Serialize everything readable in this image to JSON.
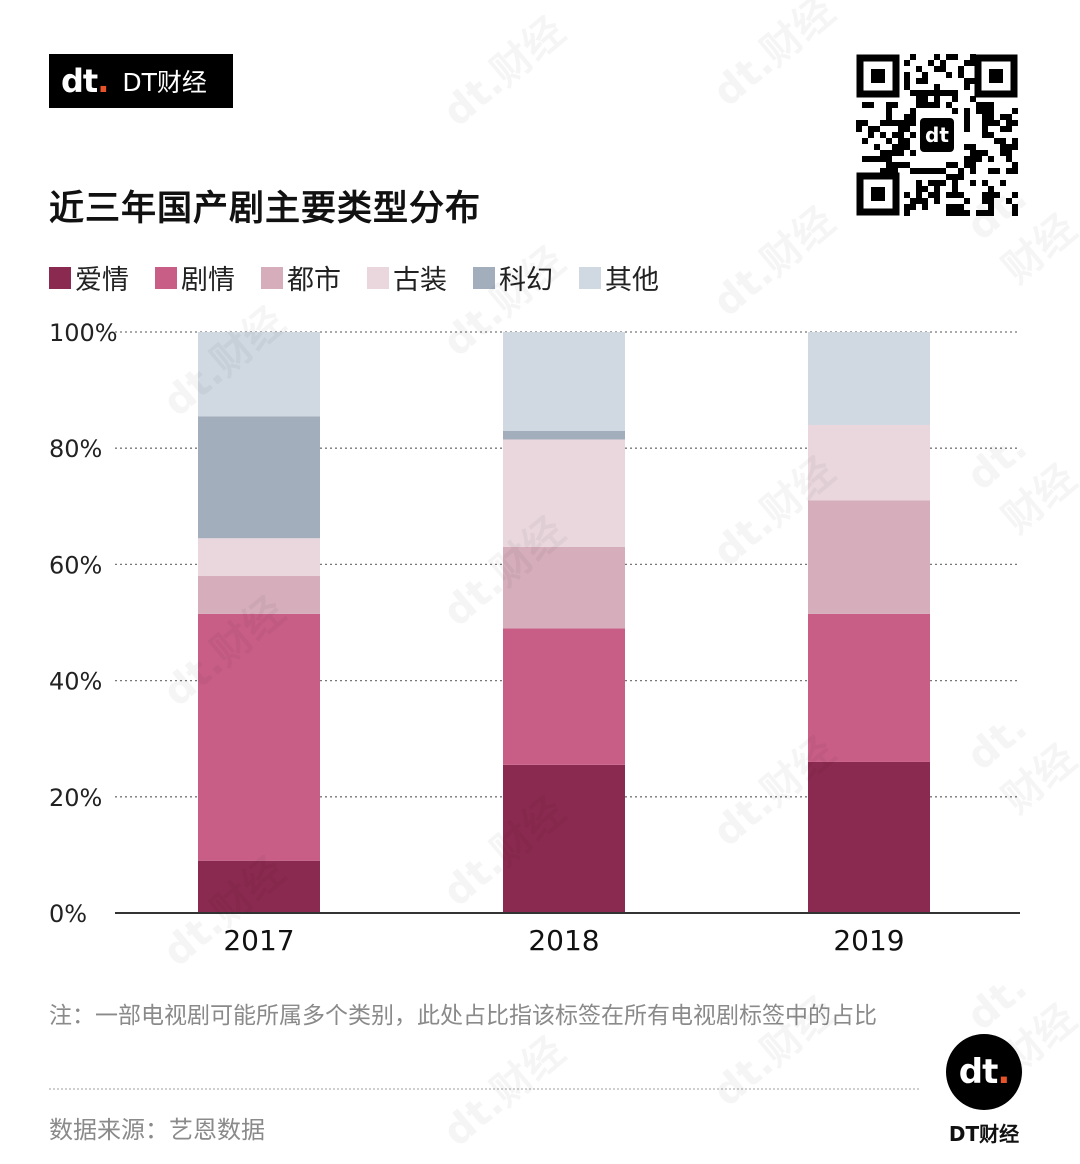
{
  "brand": {
    "mark": "dt",
    "name": "DT财经"
  },
  "title": "近三年国产剧主要类型分布",
  "note": "注：一部电视剧可能所属多个类别，此处占比指该标签在所有电视剧标签中的占比",
  "source": "数据来源：艺恩数据",
  "footer_brand": {
    "mark": "dt",
    "name": "DT财经"
  },
  "watermark_text": "dt.财经",
  "colors": {
    "爱情": "#8b2a50",
    "剧情": "#c85e86",
    "都市": "#d5adbb",
    "古装": "#ead7de",
    "科幻": "#a3aebd",
    "其他": "#d0d8e2",
    "accent": "#e8542a"
  },
  "chart_data": {
    "type": "bar",
    "stacked": true,
    "categories": [
      "2017",
      "2018",
      "2019"
    ],
    "series": [
      {
        "name": "爱情",
        "values": [
          9,
          25.5,
          26
        ]
      },
      {
        "name": "剧情",
        "values": [
          42.5,
          23.5,
          25.5
        ]
      },
      {
        "name": "都市",
        "values": [
          6.5,
          14,
          19.5
        ]
      },
      {
        "name": "古装",
        "values": [
          6.5,
          18.5,
          13
        ]
      },
      {
        "name": "科幻",
        "values": [
          21,
          1.5,
          0
        ]
      },
      {
        "name": "其他",
        "values": [
          14.5,
          17,
          16
        ]
      }
    ],
    "y_ticks": [
      "0%",
      "20%",
      "40%",
      "60%",
      "80%",
      "100%"
    ],
    "ylim": [
      0,
      100
    ],
    "legend_position": "top-left",
    "grid": true
  }
}
